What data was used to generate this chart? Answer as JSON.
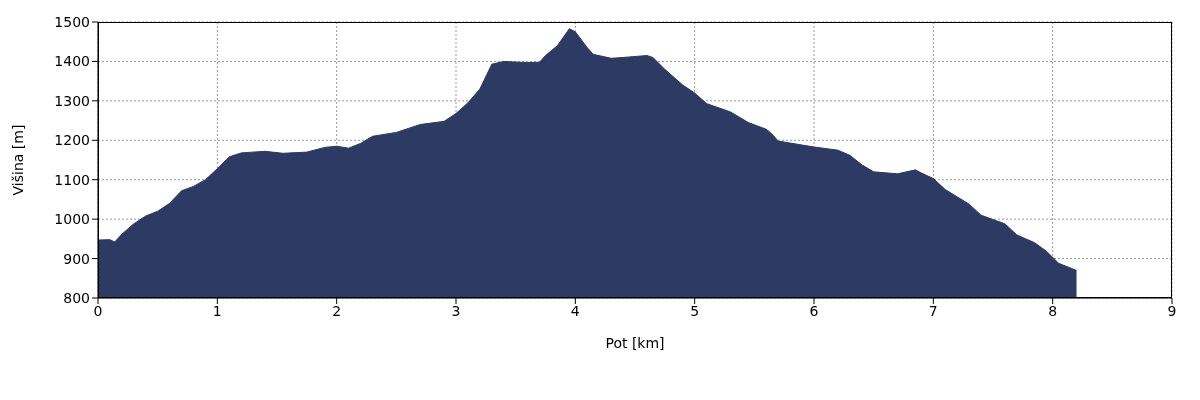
{
  "chart_data": {
    "type": "area",
    "xlabel": "Pot [km]",
    "ylabel": "Višina [m]",
    "x": [
      0,
      0.1,
      0.14,
      0.2,
      0.3,
      0.4,
      0.5,
      0.6,
      0.7,
      0.8,
      0.9,
      1.0,
      1.1,
      1.2,
      1.4,
      1.55,
      1.75,
      1.9,
      2.0,
      2.1,
      2.2,
      2.3,
      2.5,
      2.7,
      2.9,
      3.0,
      3.1,
      3.2,
      3.3,
      3.4,
      3.6,
      3.7,
      3.75,
      3.85,
      3.95,
      4.0,
      4.1,
      4.15,
      4.3,
      4.4,
      4.6,
      4.65,
      4.75,
      4.9,
      5.0,
      5.1,
      5.3,
      5.45,
      5.6,
      5.65,
      5.7,
      5.9,
      6.0,
      6.2,
      6.3,
      6.4,
      6.5,
      6.7,
      6.85,
      6.9,
      7.0,
      7.1,
      7.3,
      7.4,
      7.6,
      7.7,
      7.85,
      7.95,
      8.05,
      8.2
    ],
    "series": [
      {
        "color": "#2c3a64",
        "values": [
          947,
          948,
          942,
          962,
          988,
          1008,
          1020,
          1040,
          1072,
          1083,
          1100,
          1128,
          1158,
          1168,
          1172,
          1167,
          1170,
          1182,
          1185,
          1180,
          1192,
          1210,
          1220,
          1240,
          1248,
          1268,
          1295,
          1330,
          1393,
          1400,
          1397,
          1398,
          1415,
          1440,
          1483,
          1475,
          1435,
          1418,
          1408,
          1410,
          1415,
          1410,
          1380,
          1340,
          1320,
          1293,
          1272,
          1245,
          1228,
          1215,
          1198,
          1188,
          1183,
          1175,
          1162,
          1138,
          1120,
          1115,
          1125,
          1117,
          1103,
          1075,
          1038,
          1010,
          988,
          960,
          940,
          918,
          888,
          870
        ]
      }
    ],
    "xlim": [
      0,
      9
    ],
    "xticks": [
      0,
      1,
      2,
      3,
      4,
      5,
      6,
      7,
      8,
      9
    ],
    "ylim": [
      800,
      1500
    ],
    "yticks": [
      800,
      900,
      1000,
      1100,
      1200,
      1300,
      1400,
      1500
    ],
    "grid": true
  }
}
